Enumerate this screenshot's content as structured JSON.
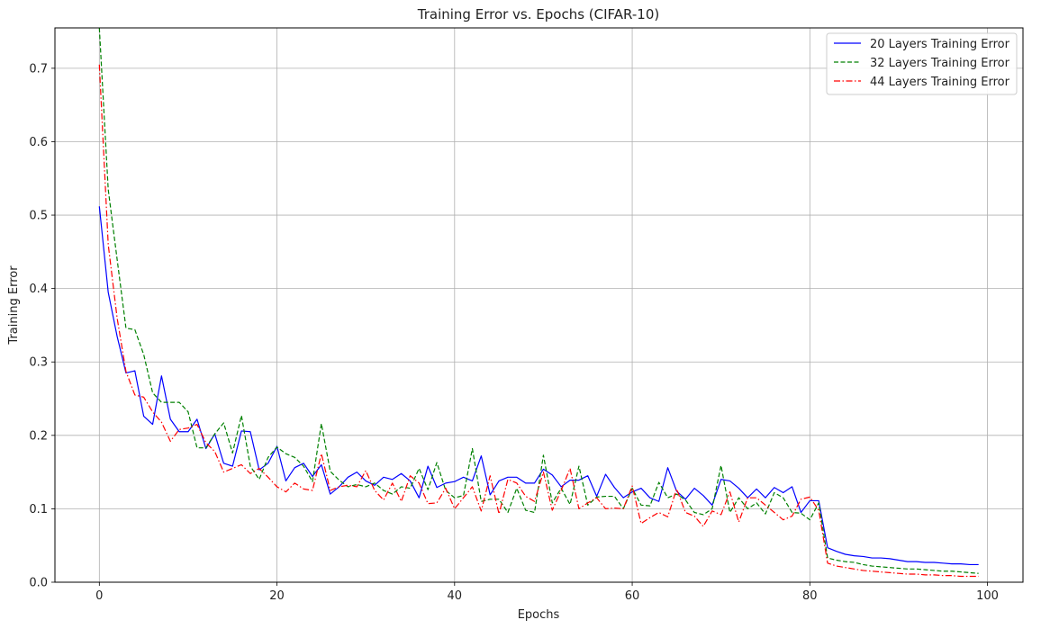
{
  "chart_data": {
    "type": "line",
    "title": "Training Error vs. Epochs (CIFAR-10)",
    "xlabel": "Epochs",
    "ylabel": "Training Error",
    "xlim": [
      -5,
      104
    ],
    "ylim": [
      0,
      0.755
    ],
    "xticks": [
      0,
      20,
      40,
      60,
      80,
      100
    ],
    "yticks": [
      0.0,
      0.1,
      0.2,
      0.3,
      0.4,
      0.5,
      0.6,
      0.7
    ],
    "grid": true,
    "legend_position": "top-right",
    "x": [
      0,
      1,
      2,
      3,
      4,
      5,
      6,
      7,
      8,
      9,
      10,
      11,
      12,
      13,
      14,
      15,
      16,
      17,
      18,
      19,
      20,
      21,
      22,
      23,
      24,
      25,
      26,
      27,
      28,
      29,
      30,
      31,
      32,
      33,
      34,
      35,
      36,
      37,
      38,
      39,
      40,
      41,
      42,
      43,
      44,
      45,
      46,
      47,
      48,
      49,
      50,
      51,
      52,
      53,
      54,
      55,
      56,
      57,
      58,
      59,
      60,
      61,
      62,
      63,
      64,
      65,
      66,
      67,
      68,
      69,
      70,
      71,
      72,
      73,
      74,
      75,
      76,
      77,
      78,
      79,
      80,
      81,
      82,
      83,
      84,
      85,
      86,
      87,
      88,
      89,
      90,
      91,
      92,
      93,
      94,
      95,
      96,
      97,
      98,
      99
    ],
    "series": [
      {
        "name": "20 Layers Training Error",
        "color": "#0000ff",
        "style": "solid",
        "values": [
          0.512,
          0.395,
          0.335,
          0.285,
          0.288,
          0.226,
          0.215,
          0.281,
          0.222,
          0.205,
          0.205,
          0.222,
          0.182,
          0.202,
          0.162,
          0.158,
          0.206,
          0.205,
          0.153,
          0.162,
          0.185,
          0.138,
          0.156,
          0.162,
          0.144,
          0.16,
          0.12,
          0.13,
          0.143,
          0.15,
          0.138,
          0.132,
          0.143,
          0.14,
          0.148,
          0.138,
          0.115,
          0.158,
          0.129,
          0.135,
          0.137,
          0.143,
          0.138,
          0.172,
          0.119,
          0.138,
          0.143,
          0.143,
          0.135,
          0.135,
          0.154,
          0.146,
          0.13,
          0.139,
          0.139,
          0.145,
          0.117,
          0.147,
          0.129,
          0.115,
          0.123,
          0.128,
          0.115,
          0.11,
          0.156,
          0.124,
          0.113,
          0.128,
          0.118,
          0.105,
          0.14,
          0.138,
          0.128,
          0.115,
          0.127,
          0.115,
          0.129,
          0.122,
          0.13,
          0.095,
          0.111,
          0.111,
          0.047,
          0.042,
          0.038,
          0.036,
          0.035,
          0.033,
          0.033,
          0.032,
          0.03,
          0.028,
          0.028,
          0.027,
          0.027,
          0.026,
          0.025,
          0.025,
          0.024,
          0.024
        ]
      },
      {
        "name": "32 Layers Training Error",
        "color": "#008000",
        "style": "dashed",
        "values": [
          0.755,
          0.535,
          0.44,
          0.346,
          0.344,
          0.31,
          0.258,
          0.245,
          0.245,
          0.245,
          0.232,
          0.183,
          0.183,
          0.202,
          0.217,
          0.176,
          0.227,
          0.158,
          0.14,
          0.17,
          0.184,
          0.175,
          0.17,
          0.158,
          0.137,
          0.216,
          0.151,
          0.139,
          0.13,
          0.133,
          0.13,
          0.135,
          0.125,
          0.12,
          0.13,
          0.128,
          0.155,
          0.126,
          0.163,
          0.125,
          0.115,
          0.118,
          0.182,
          0.11,
          0.113,
          0.113,
          0.095,
          0.128,
          0.098,
          0.095,
          0.173,
          0.108,
          0.128,
          0.106,
          0.158,
          0.105,
          0.116,
          0.117,
          0.117,
          0.1,
          0.128,
          0.105,
          0.104,
          0.136,
          0.115,
          0.12,
          0.112,
          0.095,
          0.092,
          0.1,
          0.159,
          0.095,
          0.115,
          0.1,
          0.108,
          0.093,
          0.122,
          0.115,
          0.095,
          0.094,
          0.085,
          0.108,
          0.033,
          0.03,
          0.028,
          0.027,
          0.024,
          0.022,
          0.021,
          0.02,
          0.019,
          0.018,
          0.018,
          0.017,
          0.016,
          0.015,
          0.015,
          0.014,
          0.013,
          0.012
        ]
      },
      {
        "name": "44 Layers Training Error",
        "color": "#ff0000",
        "style": "dashdot",
        "values": [
          0.705,
          0.46,
          0.36,
          0.287,
          0.255,
          0.252,
          0.232,
          0.218,
          0.192,
          0.208,
          0.21,
          0.215,
          0.19,
          0.178,
          0.15,
          0.155,
          0.16,
          0.148,
          0.155,
          0.143,
          0.13,
          0.123,
          0.135,
          0.127,
          0.125,
          0.175,
          0.125,
          0.13,
          0.132,
          0.13,
          0.152,
          0.125,
          0.112,
          0.135,
          0.11,
          0.145,
          0.135,
          0.107,
          0.108,
          0.128,
          0.1,
          0.115,
          0.13,
          0.097,
          0.145,
          0.093,
          0.14,
          0.135,
          0.117,
          0.11,
          0.15,
          0.098,
          0.125,
          0.155,
          0.1,
          0.108,
          0.115,
          0.1,
          0.101,
          0.1,
          0.131,
          0.08,
          0.088,
          0.095,
          0.089,
          0.127,
          0.095,
          0.09,
          0.076,
          0.097,
          0.092,
          0.123,
          0.082,
          0.115,
          0.115,
          0.105,
          0.095,
          0.085,
          0.09,
          0.113,
          0.116,
          0.098,
          0.026,
          0.022,
          0.02,
          0.018,
          0.016,
          0.015,
          0.014,
          0.013,
          0.012,
          0.011,
          0.011,
          0.01,
          0.01,
          0.009,
          0.009,
          0.008,
          0.008,
          0.008
        ]
      }
    ]
  }
}
